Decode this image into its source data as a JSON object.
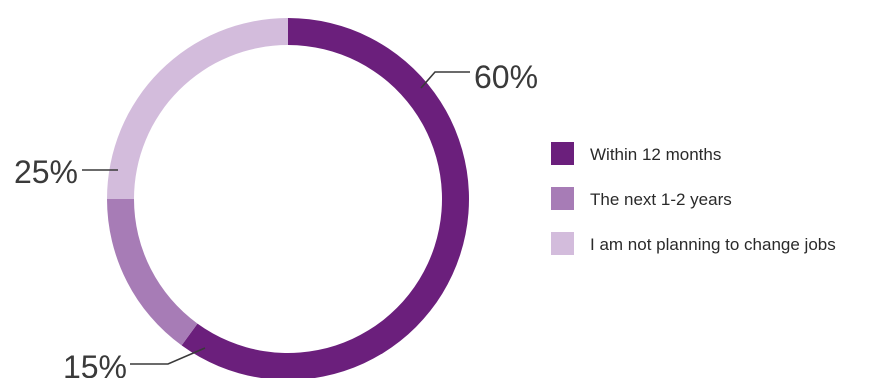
{
  "chart_data": {
    "type": "pie",
    "variant": "donut",
    "categories": [
      "Within 12 months",
      "The next 1-2 years",
      "I am not planning to change jobs"
    ],
    "values": [
      60,
      15,
      25
    ],
    "labels": [
      "60%",
      "15%",
      "25%"
    ],
    "colors": [
      "#6b1f7c",
      "#a77cb6",
      "#d3bcdc"
    ],
    "legend": {
      "position": "right",
      "entries": [
        "Within 12 months",
        "The next 1-2 years",
        "I am not planning to change jobs"
      ]
    },
    "start_angle": "top",
    "direction": "clockwise"
  }
}
